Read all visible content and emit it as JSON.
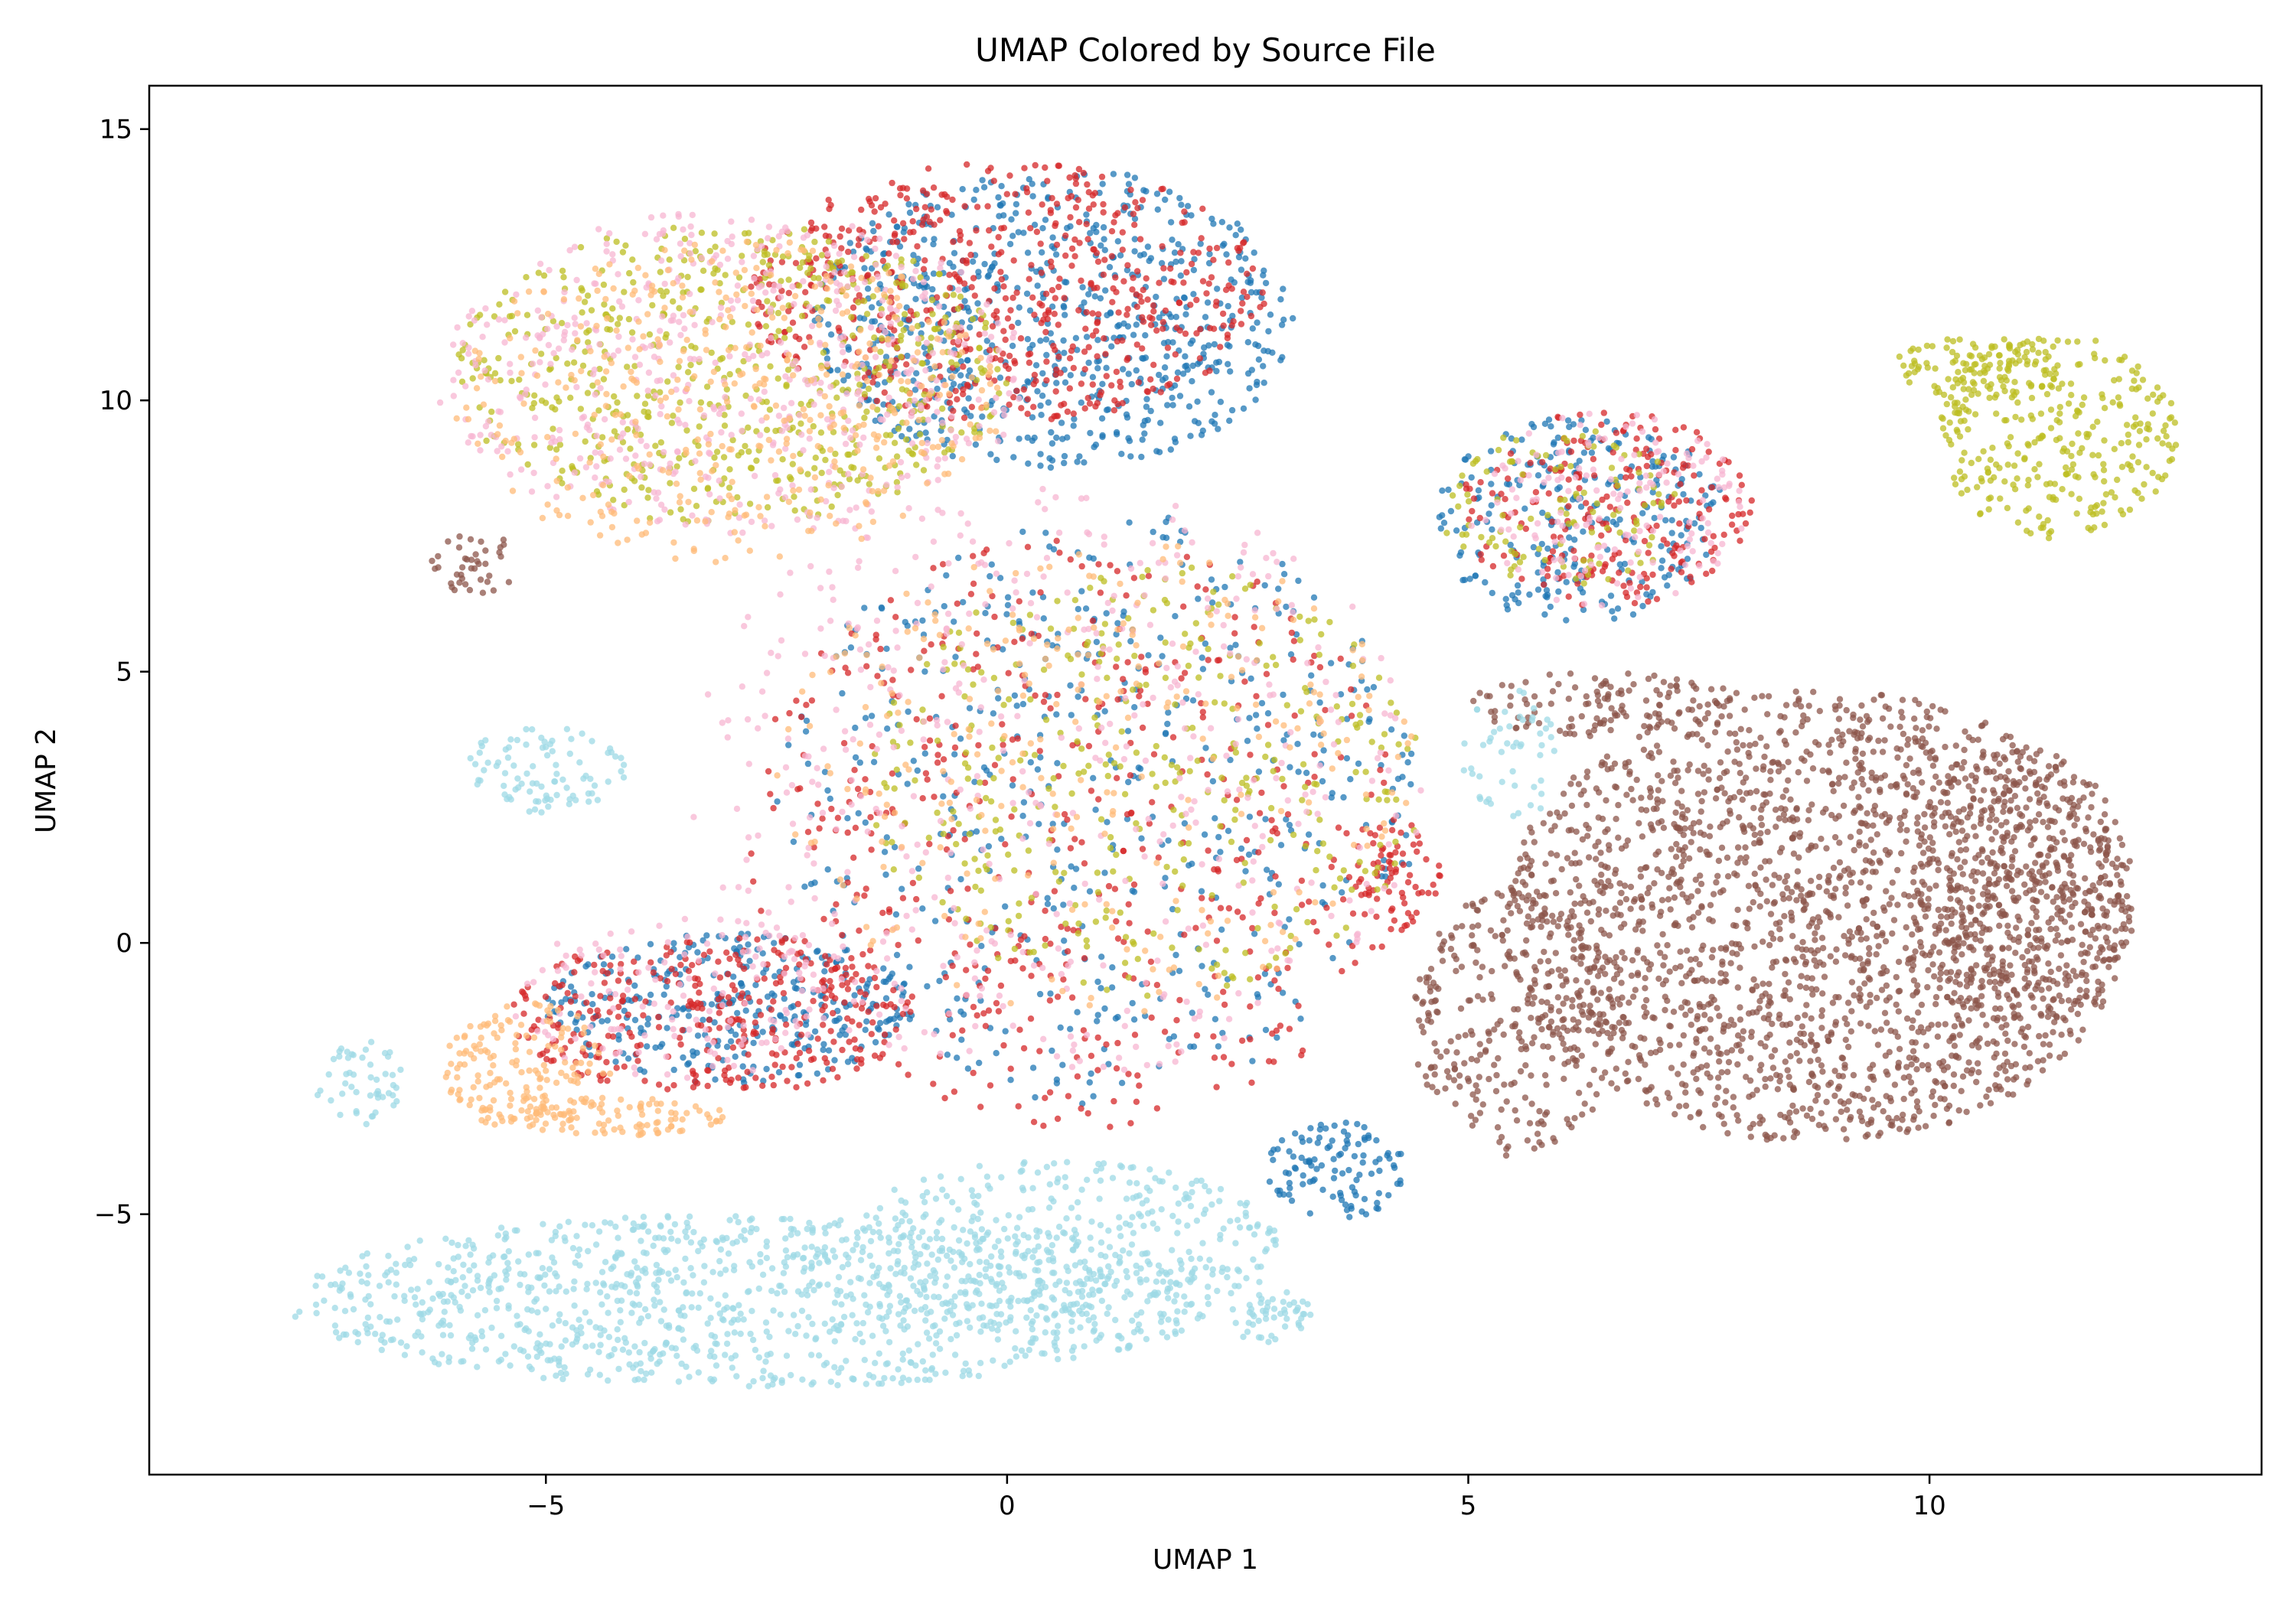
{
  "chart_data": {
    "type": "scatter",
    "title": "UMAP Colored by Source File",
    "xlabel": "UMAP 1",
    "ylabel": "UMAP 2",
    "xlim": [
      -9.3,
      13.6
    ],
    "ylim": [
      -9.8,
      15.8
    ],
    "xticks": [
      -5,
      0,
      5,
      10
    ],
    "yticks": [
      -5,
      0,
      5,
      10,
      15
    ],
    "xtick_labels": [
      "−5",
      "0",
      "5",
      "10"
    ],
    "ytick_labels": [
      "−5",
      "0",
      "5",
      "10",
      "15"
    ],
    "grid": false,
    "legend": "none",
    "colors": {
      "blue": "#1f77b4",
      "orange": "#ffbb78",
      "red": "#d62728",
      "brown": "#8c564b",
      "pink": "#f7b6d2",
      "olive": "#bcbd22",
      "cyan": "#9edae5"
    },
    "series": [
      {
        "color_key": "blue",
        "clusters": [
          {
            "type": "ellipse",
            "cx": 0.5,
            "cy": 11.5,
            "rx": 2.6,
            "ry": 2.8,
            "n": 700
          },
          {
            "type": "ellipse",
            "cx": 6.2,
            "cy": 7.8,
            "rx": 1.6,
            "ry": 1.9,
            "n": 260
          },
          {
            "type": "ellipse",
            "cx": -3.0,
            "cy": -1.2,
            "rx": 2.0,
            "ry": 1.4,
            "n": 320
          },
          {
            "type": "ellipse",
            "cx": 1.0,
            "cy": 2.5,
            "rx": 3.5,
            "ry": 5.5,
            "n": 500
          },
          {
            "type": "ellipse",
            "cx": 3.6,
            "cy": -4.2,
            "rx": 0.8,
            "ry": 0.9,
            "n": 110
          }
        ]
      },
      {
        "color_key": "red",
        "clusters": [
          {
            "type": "ellipse",
            "cx": 0.0,
            "cy": 12.0,
            "rx": 2.8,
            "ry": 2.4,
            "n": 600
          },
          {
            "type": "ellipse",
            "cx": 6.5,
            "cy": 8.0,
            "rx": 1.6,
            "ry": 1.8,
            "n": 230
          },
          {
            "type": "ellipse",
            "cx": -3.2,
            "cy": -1.3,
            "rx": 2.2,
            "ry": 1.5,
            "n": 340
          },
          {
            "type": "ellipse",
            "cx": 0.8,
            "cy": 2.0,
            "rx": 3.6,
            "ry": 5.5,
            "n": 500
          },
          {
            "type": "ellipse",
            "cx": 4.2,
            "cy": 1.2,
            "rx": 0.5,
            "ry": 1.0,
            "n": 70
          }
        ]
      },
      {
        "color_key": "olive",
        "clusters": [
          {
            "type": "ellipse",
            "cx": -3.0,
            "cy": 10.5,
            "rx": 3.0,
            "ry": 2.8,
            "n": 620
          },
          {
            "type": "ellipse",
            "cx": 1.5,
            "cy": 3.0,
            "rx": 3.0,
            "ry": 4.0,
            "n": 360
          },
          {
            "type": "ellipse",
            "cx": 6.0,
            "cy": 8.0,
            "rx": 1.3,
            "ry": 1.5,
            "n": 110
          },
          {
            "type": "ellipse",
            "cx": 11.4,
            "cy": 9.3,
            "rx": 1.3,
            "ry": 1.9,
            "n": 300
          },
          {
            "type": "ellipse",
            "cx": 10.5,
            "cy": 10.6,
            "rx": 0.9,
            "ry": 0.6,
            "n": 110
          }
        ]
      },
      {
        "color_key": "pink",
        "clusters": [
          {
            "type": "ellipse",
            "cx": -3.0,
            "cy": 10.5,
            "rx": 3.2,
            "ry": 3.0,
            "n": 560
          },
          {
            "type": "ellipse",
            "cx": 0.5,
            "cy": 3.0,
            "rx": 4.0,
            "ry": 5.5,
            "n": 460
          },
          {
            "type": "ellipse",
            "cx": 6.5,
            "cy": 8.0,
            "rx": 1.5,
            "ry": 1.8,
            "n": 150
          },
          {
            "type": "ellipse",
            "cx": -3.5,
            "cy": -1.0,
            "rx": 2.0,
            "ry": 1.5,
            "n": 140
          }
        ]
      },
      {
        "color_key": "orange",
        "clusters": [
          {
            "type": "ellipse",
            "cx": -3.0,
            "cy": 10.0,
            "rx": 3.0,
            "ry": 3.0,
            "n": 400
          },
          {
            "type": "ellipse",
            "cx": 1.0,
            "cy": 3.0,
            "rx": 3.5,
            "ry": 4.5,
            "n": 260
          },
          {
            "type": "ellipse",
            "cx": -5.2,
            "cy": -2.3,
            "rx": 0.9,
            "ry": 1.2,
            "n": 170
          },
          {
            "type": "ellipse",
            "cx": -4.2,
            "cy": -3.2,
            "rx": 1.2,
            "ry": 0.35,
            "n": 90
          }
        ]
      },
      {
        "color_key": "brown",
        "clusters": [
          {
            "type": "ellipse",
            "cx": 8.8,
            "cy": 0.5,
            "rx": 3.4,
            "ry": 4.2,
            "n": 2100
          },
          {
            "type": "ellipse",
            "cx": 11.0,
            "cy": 1.0,
            "rx": 1.2,
            "ry": 2.6,
            "n": 400
          },
          {
            "type": "ellipse",
            "cx": 5.5,
            "cy": -1.5,
            "rx": 1.1,
            "ry": 2.5,
            "n": 300
          },
          {
            "type": "ellipse",
            "cx": 6.5,
            "cy": 4.4,
            "rx": 1.5,
            "ry": 0.6,
            "n": 130
          },
          {
            "type": "ellipse",
            "cx": -5.8,
            "cy": 7.0,
            "rx": 0.5,
            "ry": 0.6,
            "n": 40
          }
        ]
      },
      {
        "color_key": "cyan",
        "clusters": [
          {
            "type": "ellipse",
            "cx": -2.8,
            "cy": -6.6,
            "rx": 5.0,
            "ry": 1.6,
            "n": 1100
          },
          {
            "type": "ellipse",
            "cx": 0.5,
            "cy": -5.6,
            "rx": 2.5,
            "ry": 1.6,
            "n": 380
          },
          {
            "type": "ellipse",
            "cx": -7.0,
            "cy": -2.7,
            "rx": 0.5,
            "ry": 0.9,
            "n": 50
          },
          {
            "type": "ellipse",
            "cx": -5.0,
            "cy": 3.2,
            "rx": 0.9,
            "ry": 0.8,
            "n": 90
          },
          {
            "type": "ellipse",
            "cx": 2.9,
            "cy": -6.9,
            "rx": 0.5,
            "ry": 0.5,
            "n": 50
          },
          {
            "type": "ellipse",
            "cx": 5.5,
            "cy": 3.5,
            "rx": 0.6,
            "ry": 1.2,
            "n": 50
          }
        ]
      }
    ]
  }
}
